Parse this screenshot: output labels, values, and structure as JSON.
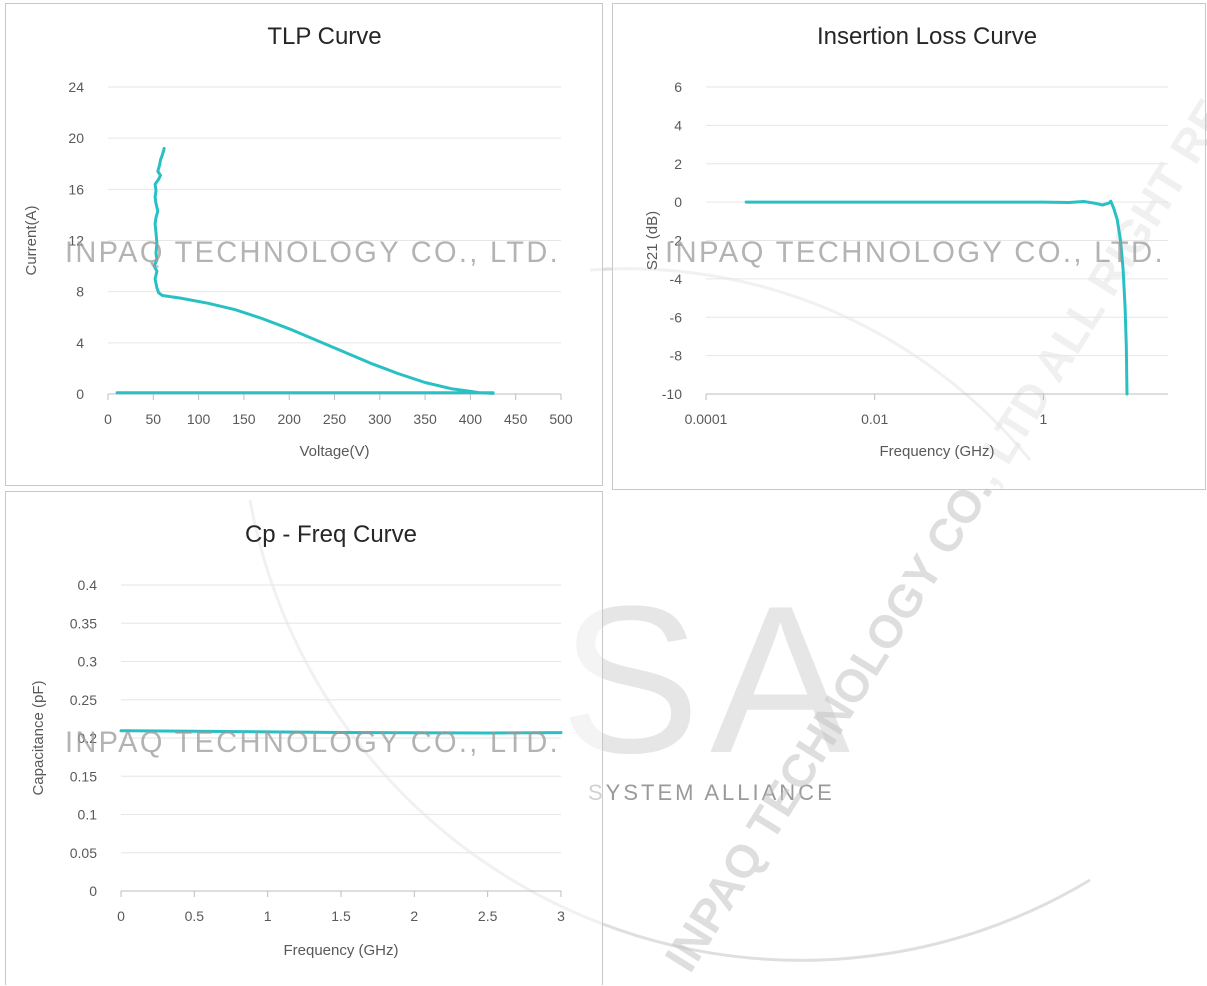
{
  "watermark": {
    "company_text": "INPAQ TECHNOLOGY CO., LTD.",
    "alliance_text": "SYSTEM ALLIANCE",
    "logo_text": "SA",
    "seal_text": "INPAQ TECHNOLOGY CO., LTD ALL RIGHT RESERVED.",
    "color": "#9a9a9a"
  },
  "colors": {
    "series": "#29c0c4",
    "grid": "#e6e6e6",
    "axis": "#bdbdbd",
    "text": "#595959",
    "title": "#262626"
  },
  "chart_data": [
    {
      "id": "tlp",
      "type": "line",
      "title": "TLP Curve",
      "xlabel": "Voltage(V)",
      "ylabel": "Current(A)",
      "xlim": [
        0,
        500
      ],
      "ylim": [
        0,
        24
      ],
      "xticks": [
        0,
        50,
        100,
        150,
        200,
        250,
        300,
        350,
        400,
        450,
        500
      ],
      "yticks": [
        0,
        4,
        8,
        12,
        16,
        20,
        24
      ],
      "grid": "horizontal",
      "legend": "none",
      "series": [
        {
          "points": [
            [
              10,
              0.1
            ],
            [
              100,
              0.1
            ],
            [
              200,
              0.1
            ],
            [
              300,
              0.1
            ],
            [
              390,
              0.1
            ],
            [
              425,
              0.1
            ],
            [
              425,
              0.05
            ],
            [
              410,
              0.1
            ],
            [
              400,
              0.2
            ],
            [
              380,
              0.4
            ],
            [
              350,
              0.9
            ],
            [
              320,
              1.6
            ],
            [
              290,
              2.4
            ],
            [
              260,
              3.3
            ],
            [
              230,
              4.2
            ],
            [
              200,
              5.1
            ],
            [
              170,
              5.9
            ],
            [
              140,
              6.6
            ],
            [
              110,
              7.1
            ],
            [
              80,
              7.5
            ],
            [
              60,
              7.7
            ],
            [
              56,
              7.9
            ],
            [
              54,
              8.3
            ],
            [
              52,
              9.0
            ],
            [
              54,
              9.6
            ],
            [
              51,
              10.0
            ],
            [
              54,
              10.5
            ],
            [
              53,
              11.0
            ],
            [
              54,
              11.8
            ],
            [
              53,
              12.6
            ],
            [
              52,
              13.3
            ],
            [
              53,
              13.8
            ],
            [
              55,
              14.3
            ],
            [
              53,
              14.9
            ],
            [
              52,
              15.4
            ],
            [
              53,
              15.9
            ],
            [
              52,
              16.4
            ],
            [
              56,
              16.8
            ],
            [
              58,
              17.1
            ],
            [
              55,
              17.4
            ],
            [
              57,
              17.9
            ],
            [
              58,
              18.3
            ],
            [
              60,
              18.7
            ],
            [
              62,
              19.2
            ]
          ]
        }
      ]
    },
    {
      "id": "insertion",
      "type": "line",
      "title": "Insertion Loss Curve",
      "xlabel": "Frequency (GHz)",
      "ylabel": "S21 (dB)",
      "xscale": "log",
      "xlim": [
        0.0001,
        30
      ],
      "ylim": [
        -10,
        6
      ],
      "xticks": [
        0.0001,
        0.01,
        1
      ],
      "xticklabels": [
        "0.0001",
        "0.01",
        "1"
      ],
      "yticks": [
        -10,
        -8,
        -6,
        -4,
        -2,
        0,
        2,
        4,
        6
      ],
      "grid": "horizontal",
      "legend": "none",
      "series": [
        {
          "points": [
            [
              0.0003,
              0
            ],
            [
              0.001,
              0
            ],
            [
              0.01,
              0
            ],
            [
              0.1,
              0
            ],
            [
              1,
              0
            ],
            [
              2,
              -0.02
            ],
            [
              3,
              0.03
            ],
            [
              4,
              -0.05
            ],
            [
              5,
              -0.15
            ],
            [
              6,
              -0.05
            ],
            [
              6.3,
              0.05
            ],
            [
              6.8,
              -0.3
            ],
            [
              7.5,
              -0.9
            ],
            [
              8.2,
              -2.0
            ],
            [
              8.8,
              -3.5
            ],
            [
              9.3,
              -5.5
            ],
            [
              9.6,
              -7.5
            ],
            [
              9.8,
              -10
            ]
          ]
        }
      ]
    },
    {
      "id": "cp",
      "type": "line",
      "title": "Cp - Freq Curve",
      "xlabel": "Frequency (GHz)",
      "ylabel": "Capacitance (pF)",
      "xlim": [
        0,
        3
      ],
      "ylim": [
        0,
        0.4
      ],
      "xticks": [
        0,
        0.5,
        1,
        1.5,
        2,
        2.5,
        3
      ],
      "yticks": [
        0,
        0.05,
        0.1,
        0.15,
        0.2,
        0.25,
        0.3,
        0.35,
        0.4
      ],
      "grid": "horizontal",
      "legend": "none",
      "series": [
        {
          "points": [
            [
              0,
              0.2095
            ],
            [
              0.5,
              0.2088
            ],
            [
              1,
              0.208
            ],
            [
              1.5,
              0.2072
            ],
            [
              2,
              0.2068
            ],
            [
              2.5,
              0.2066
            ],
            [
              3,
              0.207
            ]
          ]
        }
      ]
    }
  ]
}
